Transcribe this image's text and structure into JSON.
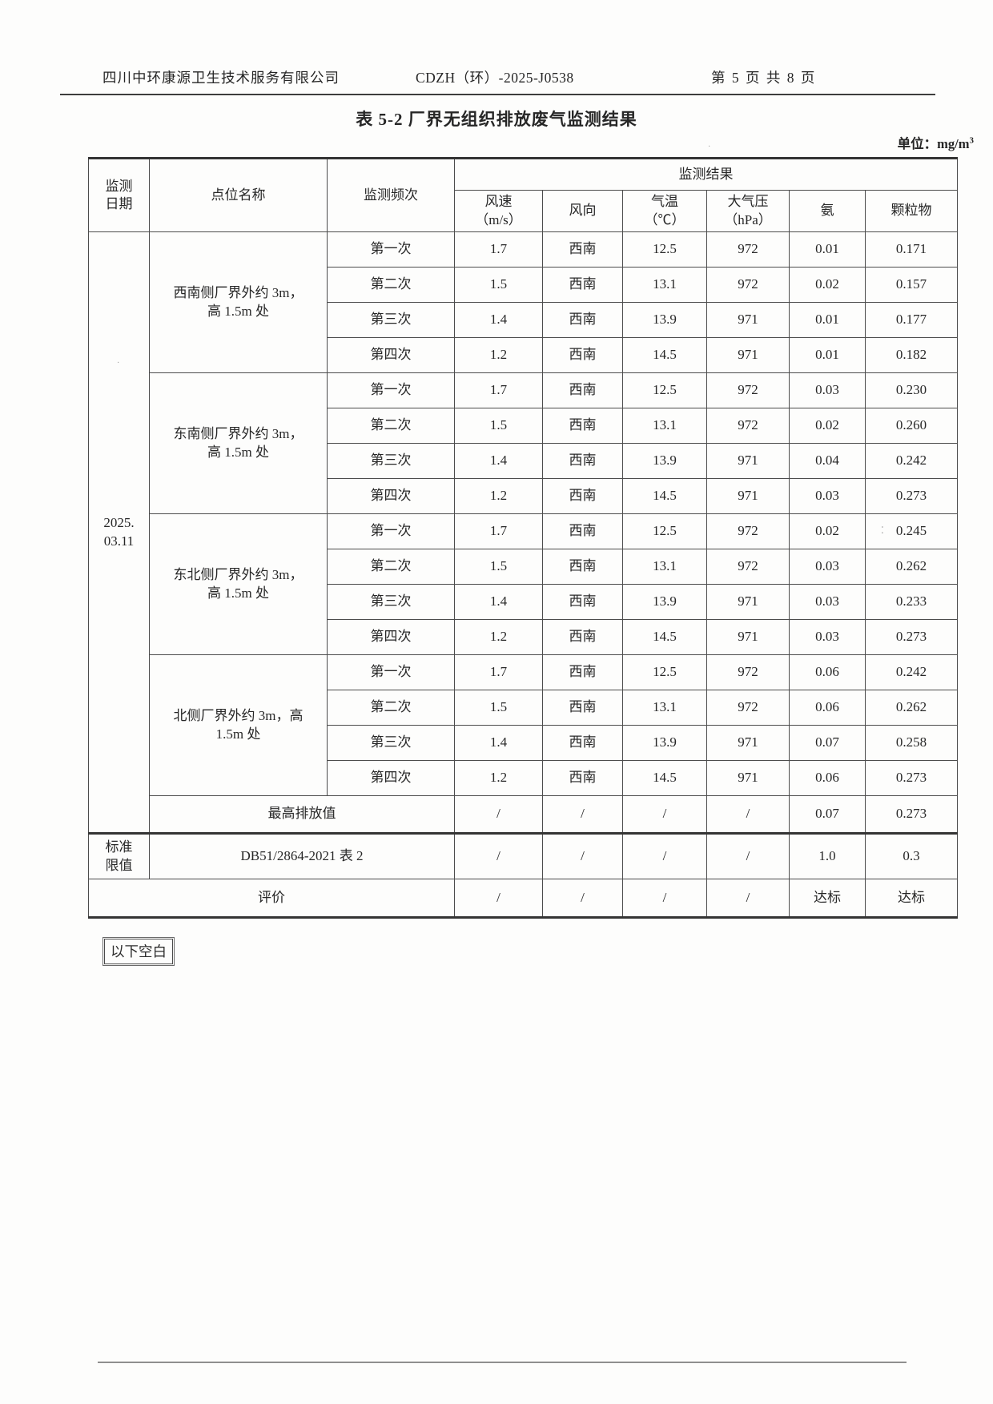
{
  "header": {
    "company": "四川中环康源卫生技术服务有限公司",
    "report_code": "CDZH（环）-2025-J0538",
    "page_info": "第 5 页 共 8 页"
  },
  "title": "表 5-2  厂界无组织排放废气监测结果",
  "unit": {
    "prefix": "单位：mg/m",
    "superscript": "3"
  },
  "table": {
    "col_headers": {
      "date": "监测\n日期",
      "location": "点位名称",
      "frequency": "监测频次",
      "results_group": "监测结果",
      "result_cols": [
        "风速\n（m/s）",
        "风向",
        "气温\n（℃）",
        "大气压\n（hPa）",
        "氨",
        "颗粒物"
      ]
    },
    "date_value": "2025.\n03.11",
    "location_blocks": [
      {
        "location": "西南侧厂界外约 3m，\n高 1.5m 处",
        "rows": [
          {
            "frequency": "第一次",
            "values": [
              "1.7",
              "西南",
              "12.5",
              "972",
              "0.01",
              "0.171"
            ]
          },
          {
            "frequency": "第二次",
            "values": [
              "1.5",
              "西南",
              "13.1",
              "972",
              "0.02",
              "0.157"
            ]
          },
          {
            "frequency": "第三次",
            "values": [
              "1.4",
              "西南",
              "13.9",
              "971",
              "0.01",
              "0.177"
            ]
          },
          {
            "frequency": "第四次",
            "values": [
              "1.2",
              "西南",
              "14.5",
              "971",
              "0.01",
              "0.182"
            ]
          }
        ]
      },
      {
        "location": "东南侧厂界外约 3m，\n高 1.5m 处",
        "rows": [
          {
            "frequency": "第一次",
            "values": [
              "1.7",
              "西南",
              "12.5",
              "972",
              "0.03",
              "0.230"
            ]
          },
          {
            "frequency": "第二次",
            "values": [
              "1.5",
              "西南",
              "13.1",
              "972",
              "0.02",
              "0.260"
            ]
          },
          {
            "frequency": "第三次",
            "values": [
              "1.4",
              "西南",
              "13.9",
              "971",
              "0.04",
              "0.242"
            ]
          },
          {
            "frequency": "第四次",
            "values": [
              "1.2",
              "西南",
              "14.5",
              "971",
              "0.03",
              "0.273"
            ]
          }
        ]
      },
      {
        "location": "东北侧厂界外约 3m，\n高 1.5m 处",
        "rows": [
          {
            "frequency": "第一次",
            "values": [
              "1.7",
              "西南",
              "12.5",
              "972",
              "0.02",
              "0.245"
            ]
          },
          {
            "frequency": "第二次",
            "values": [
              "1.5",
              "西南",
              "13.1",
              "972",
              "0.03",
              "0.262"
            ]
          },
          {
            "frequency": "第三次",
            "values": [
              "1.4",
              "西南",
              "13.9",
              "971",
              "0.03",
              "0.233"
            ]
          },
          {
            "frequency": "第四次",
            "values": [
              "1.2",
              "西南",
              "14.5",
              "971",
              "0.03",
              "0.273"
            ]
          }
        ]
      },
      {
        "location": "北侧厂界外约 3m，高\n1.5m 处",
        "rows": [
          {
            "frequency": "第一次",
            "values": [
              "1.7",
              "西南",
              "12.5",
              "972",
              "0.06",
              "0.242"
            ]
          },
          {
            "frequency": "第二次",
            "values": [
              "1.5",
              "西南",
              "13.1",
              "972",
              "0.06",
              "0.262"
            ]
          },
          {
            "frequency": "第三次",
            "values": [
              "1.4",
              "西南",
              "13.9",
              "971",
              "0.07",
              "0.258"
            ]
          },
          {
            "frequency": "第四次",
            "values": [
              "1.2",
              "西南",
              "14.5",
              "971",
              "0.06",
              "0.273"
            ]
          }
        ]
      }
    ],
    "max_row": {
      "label": "最高排放值",
      "values": [
        "/",
        "/",
        "/",
        "/",
        "0.07",
        "0.273"
      ]
    },
    "limit_row": {
      "side_label": "标准\n限值",
      "standard": "DB51/2864-2021 表 2",
      "values": [
        "/",
        "/",
        "/",
        "/",
        "1.0",
        "0.3"
      ]
    },
    "evaluation_row": {
      "label": "评价",
      "values": [
        "/",
        "/",
        "/",
        "/",
        "达标",
        "达标"
      ]
    }
  },
  "footer": {
    "blank_note": "以下空白"
  }
}
